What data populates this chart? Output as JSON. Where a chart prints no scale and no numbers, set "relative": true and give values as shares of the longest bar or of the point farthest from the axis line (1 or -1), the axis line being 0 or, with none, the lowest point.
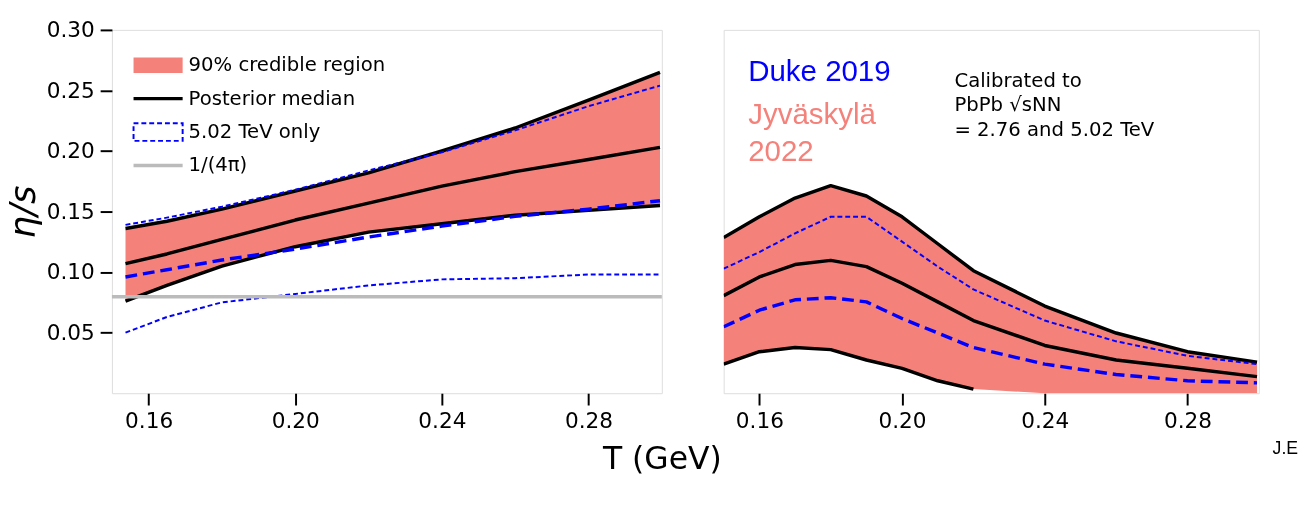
{
  "chart_data": [
    {
      "type": "line",
      "xlabel": "T (GeV)",
      "ylabel": "η/s",
      "xlim": [
        0.15,
        0.3
      ],
      "ylim": [
        0,
        0.3
      ],
      "xticks": [
        {
          "value": 0.16,
          "label": "0.16"
        },
        {
          "value": 0.2,
          "label": "0.20"
        },
        {
          "value": 0.24,
          "label": "0.24"
        },
        {
          "value": 0.28,
          "label": "0.28"
        }
      ],
      "yticks": [
        {
          "value": 0.05,
          "label": "0.05"
        },
        {
          "value": 0.1,
          "label": "0.10"
        },
        {
          "value": 0.15,
          "label": "0.15"
        },
        {
          "value": 0.2,
          "label": "0.20"
        },
        {
          "value": 0.25,
          "label": "0.25"
        },
        {
          "value": 0.3,
          "label": "0.30"
        }
      ],
      "grid": false,
      "legend": "top left",
      "series": [
        {
          "name": "90% credible region",
          "color": "#f4817a",
          "x": [
            0.1537,
            0.165,
            0.18,
            0.2,
            0.22,
            0.24,
            0.26,
            0.28,
            0.2995
          ],
          "values": [
            null,
            null,
            null,
            null,
            null,
            null,
            null,
            null,
            null
          ],
          "lower": [
            0.076,
            0.089,
            0.105,
            0.121,
            0.133,
            0.14,
            0.147,
            0.151,
            0.155
          ],
          "upper": [
            0.136,
            0.142,
            0.152,
            0.167,
            0.182,
            0.2,
            0.219,
            0.242,
            0.265
          ]
        },
        {
          "color": "#000000",
          "line_style": "solid",
          "x": [
            0.1537,
            0.165,
            0.18,
            0.2,
            0.22,
            0.24,
            0.26,
            0.28,
            0.2995
          ],
          "values": [
            0.136,
            0.142,
            0.152,
            0.167,
            0.182,
            0.2,
            0.219,
            0.242,
            0.265
          ]
        },
        {
          "color": "#000000",
          "line_style": "solid",
          "x": [
            0.1537,
            0.165,
            0.18,
            0.2,
            0.22,
            0.24,
            0.26,
            0.28,
            0.2995
          ],
          "values": [
            0.076,
            0.089,
            0.105,
            0.121,
            0.133,
            0.14,
            0.147,
            0.151,
            0.155
          ]
        },
        {
          "name": "Posterior median",
          "color": "#000000",
          "line_style": "solid",
          "x": [
            0.1537,
            0.165,
            0.18,
            0.2,
            0.22,
            0.24,
            0.26,
            0.28,
            0.2995
          ],
          "values": [
            0.107,
            0.115,
            0.127,
            0.143,
            0.157,
            0.171,
            0.183,
            0.193,
            0.203
          ]
        },
        {
          "name": "5.02 TeV only",
          "color": "#0000ff",
          "line_style": "dashed",
          "x": [
            0.1537,
            0.165,
            0.18,
            0.2,
            0.22,
            0.24,
            0.26,
            0.28,
            0.2995
          ],
          "values": [
            0.096,
            0.102,
            0.11,
            0.119,
            0.129,
            0.138,
            0.146,
            0.152,
            0.159
          ]
        },
        {
          "color": "#0000ff",
          "line_style": "dashed",
          "x": [
            0.1537,
            0.165,
            0.18,
            0.2,
            0.22,
            0.24,
            0.26,
            0.28,
            0.2995
          ],
          "values": [
            0.139,
            0.145,
            0.154,
            0.168,
            0.184,
            0.199,
            0.217,
            0.237,
            0.254
          ]
        },
        {
          "color": "#0000ff",
          "line_style": "dashed",
          "x": [
            0.1537,
            0.165,
            0.18,
            0.2,
            0.22,
            0.24,
            0.26,
            0.28,
            0.2995
          ],
          "values": [
            0.05,
            0.063,
            0.075,
            0.082,
            0.089,
            0.094,
            0.095,
            0.098,
            0.098
          ]
        }
      ],
      "ref_lines": [
        {
          "axis": "y",
          "value": 0.0796,
          "label": "1/(4π)",
          "color": "#bbbbbb"
        }
      ]
    },
    {
      "type": "line",
      "relative": true,
      "xlim": [
        0.15,
        0.3
      ],
      "xticks": [
        {
          "value": 0.16,
          "label": "0.16"
        },
        {
          "value": 0.2,
          "label": "0.20"
        },
        {
          "value": 0.24,
          "label": "0.24"
        },
        {
          "value": 0.28,
          "label": "0.28"
        }
      ],
      "tick_labels": "x",
      "grid": false,
      "series": [
        {
          "color": "#f4817a",
          "x": [
            0.15,
            0.16,
            0.17,
            0.18,
            0.19,
            0.2,
            0.21,
            0.22,
            0.24,
            0.26,
            0.28,
            0.2995
          ],
          "values": [
            null,
            null,
            null,
            null,
            null,
            null,
            null,
            null,
            null,
            null,
            null,
            null
          ],
          "lower": [
            0.14,
            0.2,
            0.22,
            0.21,
            0.16,
            0.12,
            0.06,
            0.02,
            0.0,
            0.0,
            0.0,
            0.0
          ],
          "upper": [
            0.75,
            0.85,
            0.94,
            1.0,
            0.95,
            0.85,
            0.72,
            0.59,
            0.42,
            0.29,
            0.2,
            0.15
          ]
        },
        {
          "color": "#000000",
          "line_style": "solid",
          "x": [
            0.15,
            0.16,
            0.17,
            0.18,
            0.19,
            0.2,
            0.21,
            0.22,
            0.24,
            0.26,
            0.28,
            0.2995
          ],
          "values": [
            0.75,
            0.85,
            0.94,
            1.0,
            0.95,
            0.85,
            0.72,
            0.59,
            0.42,
            0.29,
            0.2,
            0.15
          ]
        },
        {
          "color": "#000000",
          "line_style": "solid",
          "x": [
            0.15,
            0.16,
            0.17,
            0.18,
            0.19,
            0.2,
            0.21,
            0.22
          ],
          "values": [
            0.14,
            0.2,
            0.22,
            0.21,
            0.16,
            0.12,
            0.06,
            0.02
          ]
        },
        {
          "color": "#000000",
          "line_style": "solid",
          "x": [
            0.15,
            0.16,
            0.17,
            0.18,
            0.19,
            0.2,
            0.21,
            0.22,
            0.24,
            0.26,
            0.28,
            0.2995
          ],
          "values": [
            0.47,
            0.56,
            0.62,
            0.64,
            0.61,
            0.53,
            0.44,
            0.35,
            0.23,
            0.16,
            0.12,
            0.08
          ]
        },
        {
          "color": "#0000ff",
          "line_style": "dashed",
          "x": [
            0.15,
            0.16,
            0.17,
            0.18,
            0.19,
            0.2,
            0.21,
            0.22,
            0.24,
            0.26,
            0.28,
            0.2995
          ],
          "values": [
            0.32,
            0.4,
            0.45,
            0.46,
            0.44,
            0.36,
            0.29,
            0.22,
            0.14,
            0.09,
            0.06,
            0.05
          ]
        },
        {
          "color": "#0000ff",
          "line_style": "dashed",
          "x": [
            0.15,
            0.16,
            0.17,
            0.18,
            0.19,
            0.2,
            0.21,
            0.22,
            0.24,
            0.26,
            0.28,
            0.2995
          ],
          "values": [
            0.6,
            0.68,
            0.77,
            0.85,
            0.85,
            0.73,
            0.61,
            0.5,
            0.35,
            0.25,
            0.18,
            0.14
          ]
        }
      ],
      "annotations": [
        "Duke 2019",
        "Jyväskylä\n2022",
        "Calibrated to\nPbPb √sNN\n= 2.76 and 5.02 TeV",
        "J.E"
      ]
    }
  ]
}
